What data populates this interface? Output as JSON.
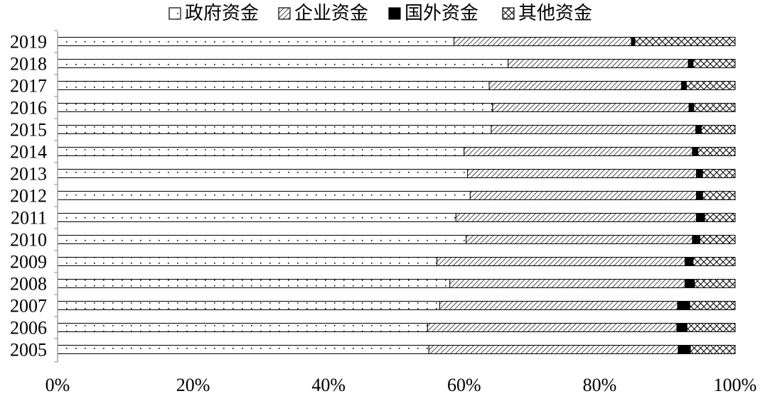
{
  "chart_data": {
    "type": "bar",
    "orientation": "horizontal",
    "stacked": true,
    "percent": true,
    "categories": [
      "2019",
      "2018",
      "2017",
      "2016",
      "2015",
      "2014",
      "2013",
      "2012",
      "2011",
      "2010",
      "2009",
      "2008",
      "2007",
      "2006",
      "2005"
    ],
    "xlim": [
      0,
      100
    ],
    "x_ticks": [
      "0%",
      "20%",
      "40%",
      "60%",
      "80%",
      "100%"
    ],
    "grid": false,
    "legend_position": "top",
    "series": [
      {
        "name": "政府资金",
        "pattern": "dots",
        "values": [
          58.5,
          66.5,
          63.7,
          64.2,
          64.0,
          60.0,
          60.5,
          60.9,
          58.8,
          60.3,
          56.0,
          57.9,
          56.4,
          54.6,
          54.8
        ]
      },
      {
        "name": "企业资金",
        "pattern": "diagonal",
        "values": [
          26.2,
          26.6,
          28.4,
          29.0,
          30.2,
          33.7,
          33.8,
          33.4,
          35.5,
          33.4,
          36.6,
          34.7,
          35.1,
          36.8,
          36.8
        ]
      },
      {
        "name": "国外资金",
        "pattern": "solid",
        "values": [
          0.5,
          0.7,
          0.7,
          0.7,
          0.8,
          0.8,
          0.9,
          0.9,
          1.2,
          1.1,
          1.2,
          1.4,
          1.8,
          1.5,
          1.8
        ]
      },
      {
        "name": "其他资金",
        "pattern": "crosshatch",
        "values": [
          14.8,
          6.2,
          7.2,
          6.1,
          5.0,
          5.5,
          4.8,
          4.8,
          4.5,
          5.2,
          6.2,
          6.0,
          6.7,
          7.1,
          6.6
        ]
      }
    ]
  }
}
